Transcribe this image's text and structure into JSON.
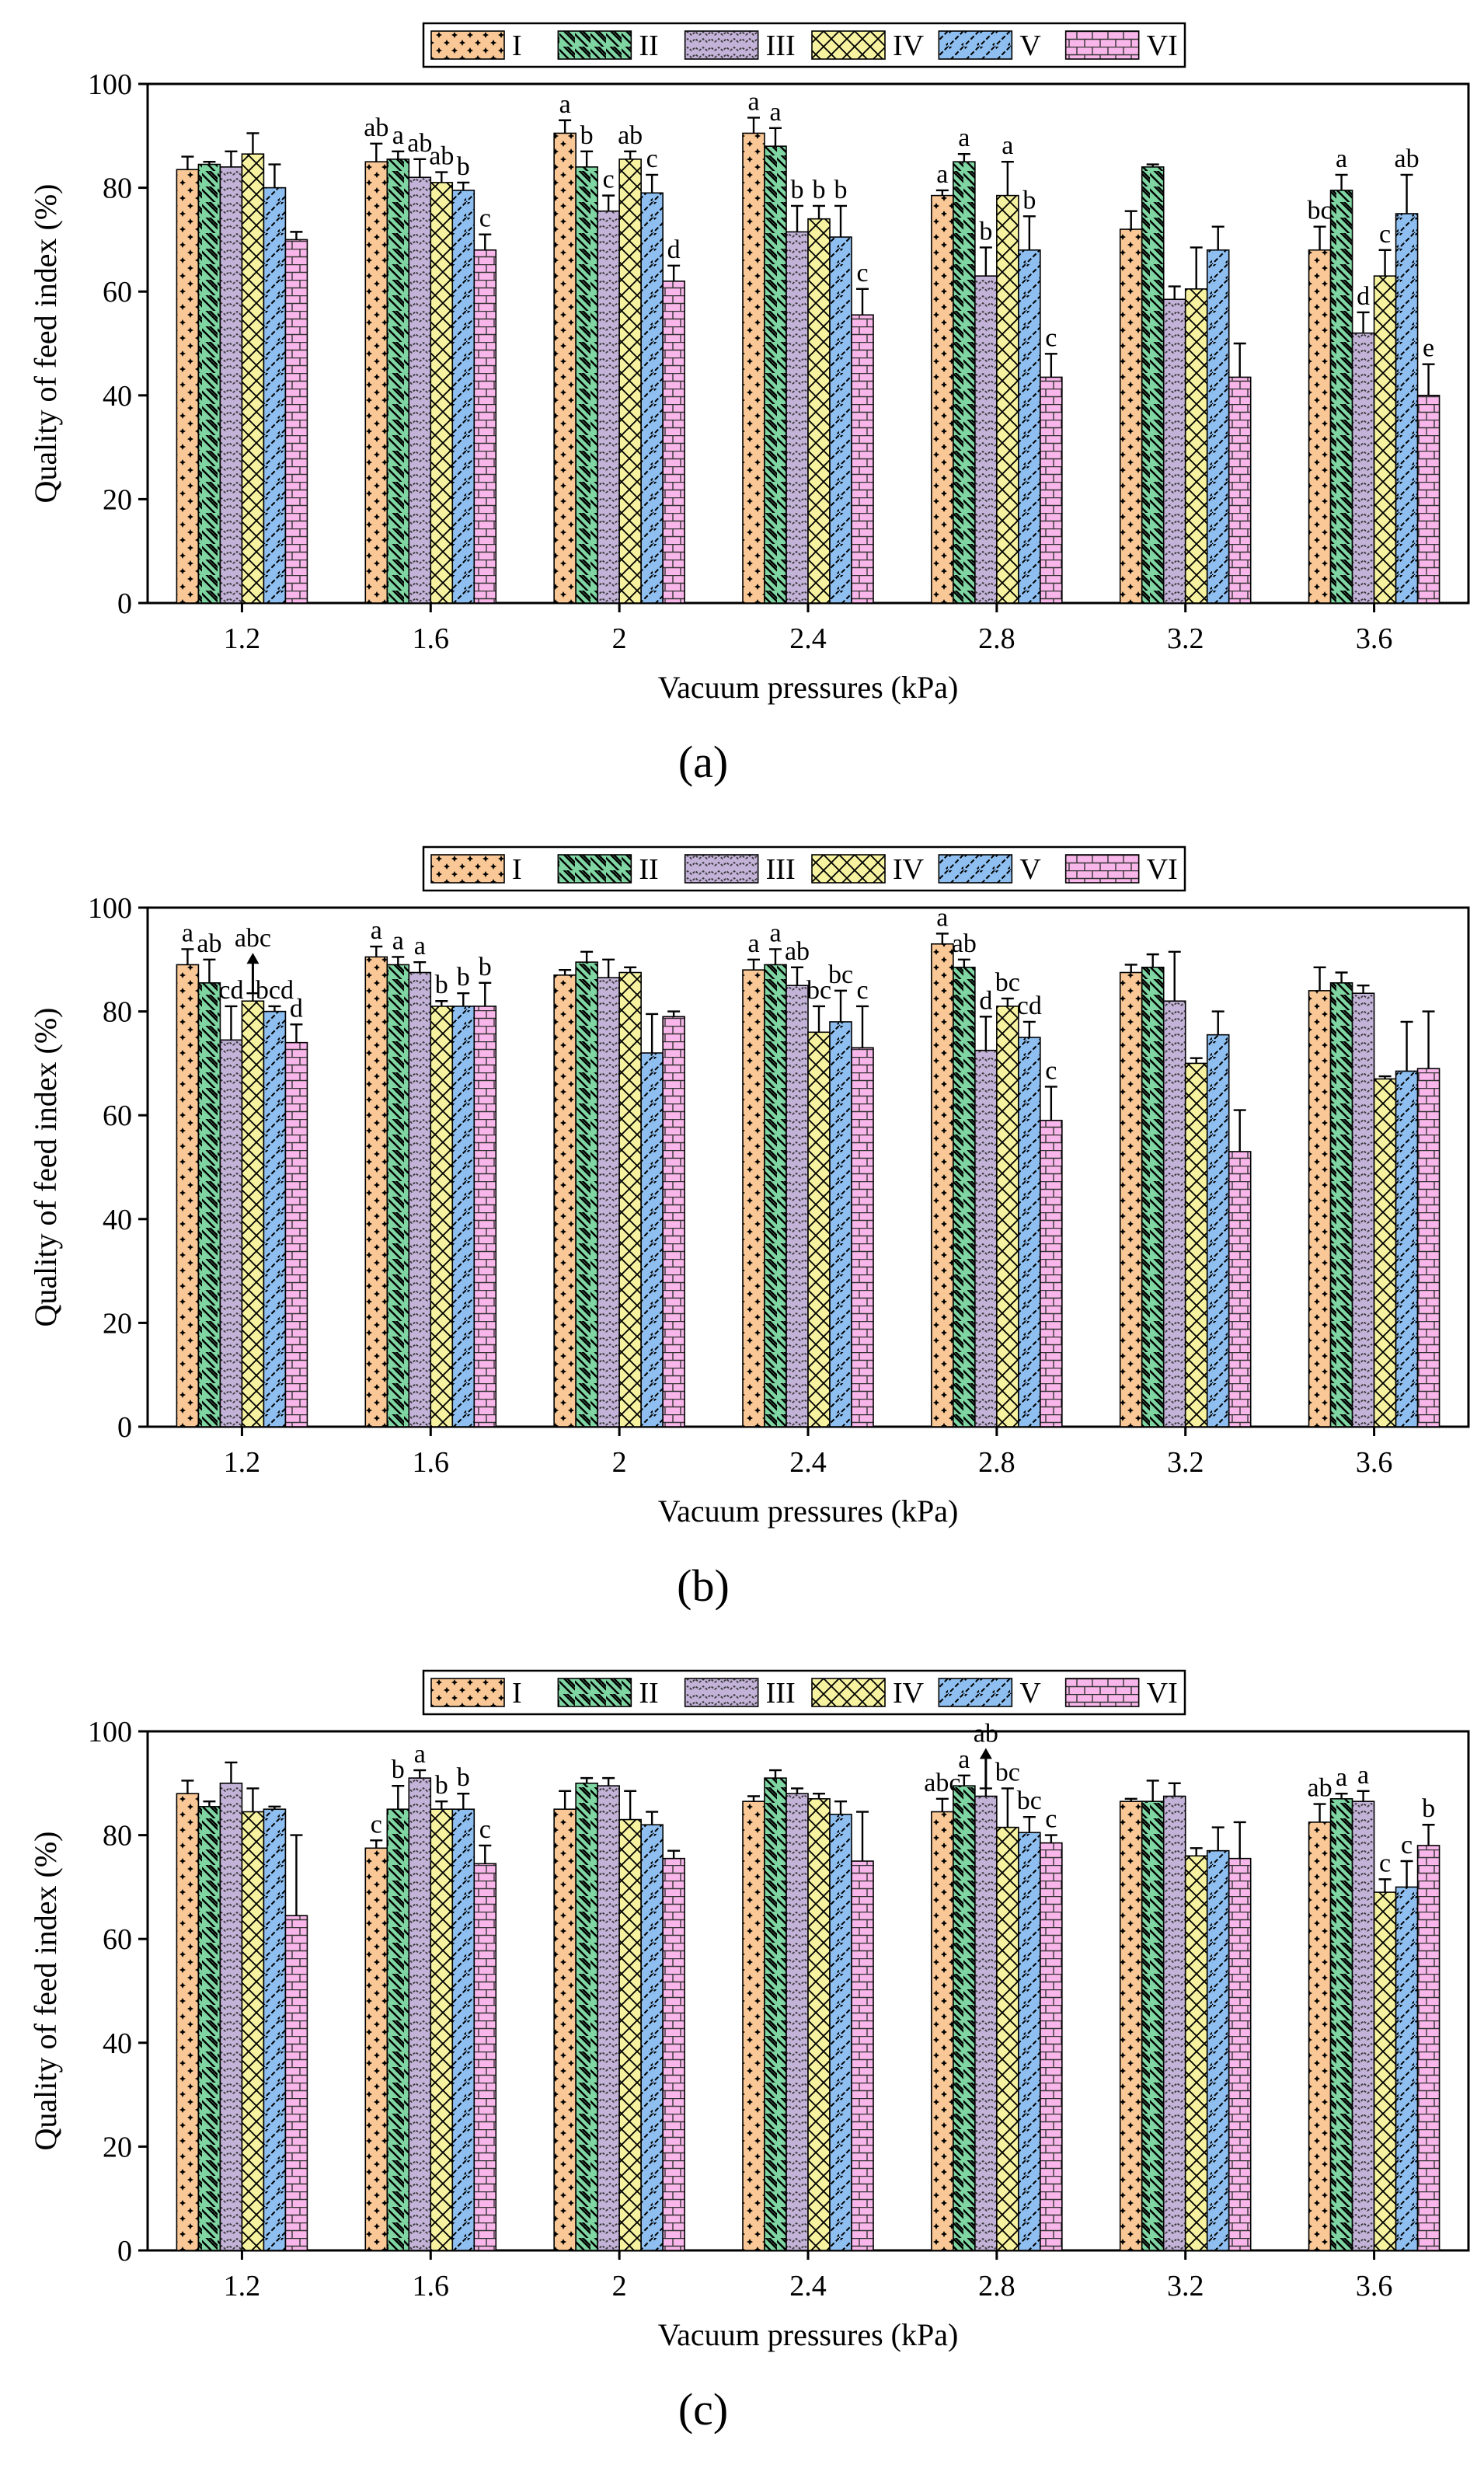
{
  "legend": [
    "I",
    "II",
    "III",
    "IV",
    "V",
    "VI"
  ],
  "series_colors": [
    "#f9c896",
    "#7fd6a3",
    "#c4b3d9",
    "#f6f2a0",
    "#8ebff0",
    "#f9b6ea"
  ],
  "series_patterns": [
    "crosses",
    "diagonal-right",
    "zigzag",
    "diamond-grid",
    "diagonal-left-wave",
    "bricks"
  ],
  "chart_data": [
    {
      "panel_label": "(a)",
      "type": "bar",
      "xlabel": "Vacuum pressures (kPa)",
      "ylabel": "Quality of feed index (%)",
      "ylim": [
        0,
        100
      ],
      "yticks": [
        0,
        20,
        40,
        60,
        80,
        100
      ],
      "categories": [
        "1.2",
        "1.6",
        "2",
        "2.4",
        "2.8",
        "3.2",
        "3.6"
      ],
      "legend_position": "top",
      "series": [
        {
          "name": "I",
          "values": [
            83.5,
            85.0,
            90.5,
            90.5,
            78.5,
            72.0,
            68.0
          ],
          "errors": [
            2.5,
            3.5,
            2.5,
            3.0,
            1.0,
            3.5,
            4.5
          ],
          "letters": [
            "",
            "ab",
            "a",
            "a",
            "a",
            "",
            "bc"
          ]
        },
        {
          "name": "II",
          "values": [
            84.5,
            85.5,
            84.0,
            88.0,
            85.0,
            84.0,
            79.5
          ],
          "errors": [
            0.5,
            1.5,
            3.0,
            3.5,
            1.5,
            0.5,
            3.0
          ],
          "letters": [
            "",
            "a",
            "b",
            "a",
            "a",
            "",
            "a"
          ]
        },
        {
          "name": "III",
          "values": [
            84.0,
            82.0,
            75.5,
            71.5,
            63.0,
            58.5,
            52.0
          ],
          "errors": [
            3.0,
            3.5,
            3.0,
            5.0,
            5.5,
            2.5,
            4.0
          ],
          "letters": [
            "",
            "ab",
            "c",
            "b",
            "b",
            "",
            "d"
          ]
        },
        {
          "name": "IV",
          "values": [
            86.5,
            81.0,
            85.5,
            74.0,
            78.5,
            60.5,
            63.0
          ],
          "errors": [
            4.0,
            2.0,
            1.5,
            2.5,
            6.5,
            8.0,
            5.0
          ],
          "letters": [
            "",
            "ab",
            "ab",
            "b",
            "a",
            "",
            "c"
          ]
        },
        {
          "name": "V",
          "values": [
            80.0,
            79.5,
            79.0,
            70.5,
            68.0,
            68.0,
            75.0
          ],
          "errors": [
            4.5,
            1.5,
            3.5,
            6.0,
            6.5,
            4.5,
            7.5
          ],
          "letters": [
            "",
            "b",
            "c",
            "b",
            "b",
            "",
            "ab"
          ]
        },
        {
          "name": "VI",
          "values": [
            70.0,
            68.0,
            62.0,
            55.5,
            43.5,
            43.5,
            40.0
          ],
          "errors": [
            1.5,
            3.0,
            3.0,
            5.0,
            4.5,
            6.5,
            6.0
          ],
          "letters": [
            "",
            "c",
            "d",
            "c",
            "c",
            "",
            "e"
          ]
        }
      ],
      "arrow": null
    },
    {
      "panel_label": "(b)",
      "type": "bar",
      "xlabel": "Vacuum pressures (kPa)",
      "ylabel": "Quality of feed index (%)",
      "ylim": [
        0,
        100
      ],
      "yticks": [
        0,
        20,
        40,
        60,
        80,
        100
      ],
      "categories": [
        "1.2",
        "1.6",
        "2",
        "2.4",
        "2.8",
        "3.2",
        "3.6"
      ],
      "legend_position": "top",
      "series": [
        {
          "name": "I",
          "values": [
            89.0,
            90.5,
            87.0,
            88.0,
            93.0,
            87.5,
            84.0
          ],
          "errors": [
            3.0,
            2.0,
            1.0,
            2.0,
            2.0,
            1.5,
            4.5
          ],
          "letters": [
            "a",
            "a",
            "",
            "a",
            "a",
            "",
            ""
          ]
        },
        {
          "name": "II",
          "values": [
            85.5,
            89.0,
            89.5,
            89.0,
            88.5,
            88.5,
            85.5
          ],
          "errors": [
            4.5,
            1.5,
            2.0,
            3.0,
            1.5,
            2.5,
            2.0
          ],
          "letters": [
            "ab",
            "a",
            "",
            "a",
            "ab",
            "",
            ""
          ]
        },
        {
          "name": "III",
          "values": [
            74.5,
            87.5,
            86.5,
            85.0,
            72.5,
            82.0,
            83.5
          ],
          "errors": [
            6.5,
            2.0,
            3.5,
            3.5,
            6.5,
            9.5,
            1.5
          ],
          "letters": [
            "cd",
            "a",
            "",
            "ab",
            "d",
            "",
            ""
          ]
        },
        {
          "name": "IV",
          "values": [
            82.0,
            81.0,
            87.5,
            76.0,
            81.0,
            70.0,
            67.0
          ],
          "errors": [
            1.5,
            1.0,
            1.0,
            5.0,
            1.5,
            1.0,
            0.5
          ],
          "letters": [
            "",
            "b",
            "",
            "bc",
            "bc",
            "",
            ""
          ]
        },
        {
          "name": "V",
          "values": [
            80.0,
            81.0,
            72.0,
            78.0,
            75.0,
            75.5,
            68.5
          ],
          "errors": [
            1.0,
            2.5,
            7.5,
            6.0,
            3.0,
            4.5,
            9.5
          ],
          "letters": [
            "bcd",
            "b",
            "",
            "bc",
            "cd",
            "",
            ""
          ]
        },
        {
          "name": "VI",
          "values": [
            74.0,
            81.0,
            79.0,
            73.0,
            59.0,
            53.0,
            69.0
          ],
          "errors": [
            3.5,
            4.5,
            1.0,
            8.0,
            6.5,
            8.0,
            11.0
          ],
          "letters": [
            "d",
            "b",
            "",
            "c",
            "c",
            "",
            ""
          ]
        }
      ],
      "arrow": {
        "category": 0,
        "series": 3,
        "label": "abc"
      }
    },
    {
      "panel_label": "(c)",
      "type": "bar",
      "xlabel": "Vacuum pressures (kPa)",
      "ylabel": "Quality of feed index (%)",
      "ylim": [
        0,
        100
      ],
      "yticks": [
        0,
        20,
        40,
        60,
        80,
        100
      ],
      "categories": [
        "1.2",
        "1.6",
        "2",
        "2.4",
        "2.8",
        "3.2",
        "3.6"
      ],
      "legend_position": "top",
      "series": [
        {
          "name": "I",
          "values": [
            88.0,
            77.5,
            85.0,
            86.5,
            84.5,
            86.5,
            82.5
          ],
          "errors": [
            2.5,
            1.5,
            3.5,
            1.0,
            2.5,
            0.5,
            3.5
          ],
          "letters": [
            "",
            "c",
            "",
            "",
            "abc",
            "",
            "ab"
          ]
        },
        {
          "name": "II",
          "values": [
            85.5,
            85.0,
            90.0,
            91.0,
            89.5,
            86.5,
            87.0
          ],
          "errors": [
            1.0,
            4.5,
            1.0,
            1.5,
            2.0,
            4.0,
            1.0
          ],
          "letters": [
            "",
            "b",
            "",
            "",
            "a",
            "",
            "a"
          ]
        },
        {
          "name": "III",
          "values": [
            90.0,
            91.0,
            89.5,
            88.0,
            87.5,
            87.5,
            86.5
          ],
          "errors": [
            4.0,
            1.5,
            1.5,
            1.0,
            1.5,
            2.5,
            2.0
          ],
          "letters": [
            "",
            "a",
            "",
            "",
            "",
            "",
            "a"
          ]
        },
        {
          "name": "IV",
          "values": [
            84.5,
            85.0,
            83.0,
            87.0,
            81.5,
            76.0,
            69.0
          ],
          "errors": [
            4.5,
            1.5,
            5.5,
            1.0,
            7.5,
            1.5,
            2.5
          ],
          "letters": [
            "",
            "b",
            "",
            "",
            "bc",
            "",
            "c"
          ]
        },
        {
          "name": "V",
          "values": [
            85.0,
            85.0,
            82.0,
            84.0,
            80.5,
            77.0,
            70.0
          ],
          "errors": [
            0.5,
            3.0,
            2.5,
            2.5,
            3.0,
            4.5,
            5.0
          ],
          "letters": [
            "",
            "b",
            "",
            "",
            "bc",
            "",
            "c"
          ]
        },
        {
          "name": "VI",
          "values": [
            64.5,
            74.5,
            75.5,
            75.0,
            78.5,
            75.5,
            78.0
          ],
          "errors": [
            15.5,
            3.5,
            1.5,
            9.5,
            1.5,
            7.0,
            4.0
          ],
          "letters": [
            "",
            "c",
            "",
            "",
            "c",
            "",
            "b"
          ]
        }
      ],
      "arrow": {
        "category": 4,
        "series": 2,
        "label": "ab"
      }
    }
  ]
}
